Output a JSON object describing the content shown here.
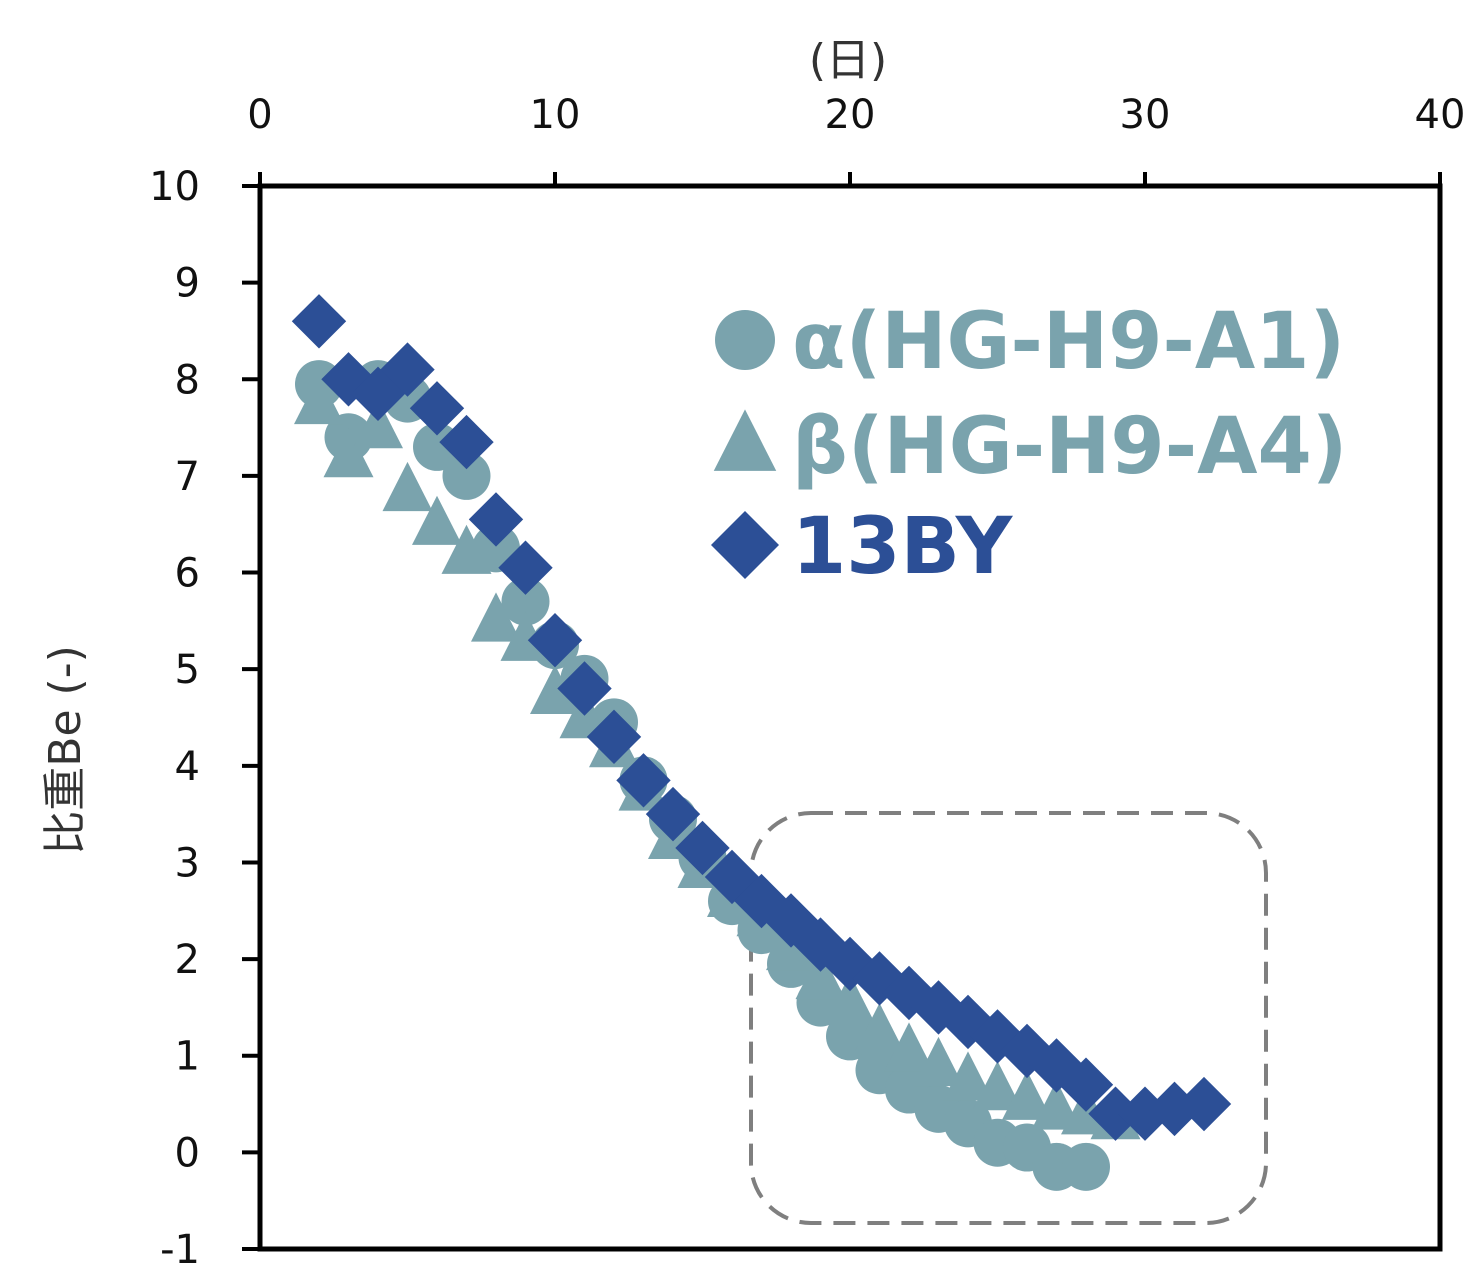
{
  "chart_data": {
    "type": "scatter",
    "xlabel": "(日)",
    "ylabel": "比重Be (-)",
    "xlim": [
      0,
      40
    ],
    "ylim": [
      -1,
      10
    ],
    "x_ticks": [
      "0",
      "10",
      "20",
      "30",
      "40"
    ],
    "y_ticks": [
      "10",
      "9",
      "8",
      "7",
      "6",
      "5",
      "4",
      "3",
      "2",
      "1",
      "0",
      "-1"
    ],
    "x_axis_position": "top",
    "grid": false,
    "legend_position": "top-right",
    "series": [
      {
        "name": "α(HG-H9-A1)",
        "marker": "circle",
        "color": "#7aa3ad",
        "points": [
          [
            2,
            7.95
          ],
          [
            3,
            7.4
          ],
          [
            4,
            7.95
          ],
          [
            5,
            7.8
          ],
          [
            6,
            7.3
          ],
          [
            7,
            7.0
          ],
          [
            8,
            6.25
          ],
          [
            9,
            5.7
          ],
          [
            10,
            5.25
          ],
          [
            11,
            4.9
          ],
          [
            12,
            4.45
          ],
          [
            13,
            3.85
          ],
          [
            14,
            3.45
          ],
          [
            15,
            3.05
          ],
          [
            16,
            2.6
          ],
          [
            17,
            2.3
          ],
          [
            18,
            1.95
          ],
          [
            19,
            1.55
          ],
          [
            20,
            1.2
          ],
          [
            21,
            0.85
          ],
          [
            22,
            0.65
          ],
          [
            23,
            0.45
          ],
          [
            24,
            0.3
          ],
          [
            25,
            0.1
          ],
          [
            26,
            0.05
          ],
          [
            27,
            -0.15
          ],
          [
            28,
            -0.15
          ]
        ]
      },
      {
        "name": "β(HG-H9-A4)",
        "marker": "triangle",
        "color": "#7aa3ad",
        "points": [
          [
            2,
            7.75
          ],
          [
            3,
            7.2
          ],
          [
            4,
            7.5
          ],
          [
            5,
            6.85
          ],
          [
            6,
            6.5
          ],
          [
            7,
            6.2
          ],
          [
            8,
            5.5
          ],
          [
            9,
            5.3
          ],
          [
            10,
            4.75
          ],
          [
            11,
            4.5
          ],
          [
            12,
            4.2
          ],
          [
            13,
            3.75
          ],
          [
            14,
            3.25
          ],
          [
            15,
            2.95
          ],
          [
            16,
            2.65
          ],
          [
            17,
            2.45
          ],
          [
            18,
            2.1
          ],
          [
            19,
            1.8
          ],
          [
            20,
            1.55
          ],
          [
            21,
            1.25
          ],
          [
            22,
            1.05
          ],
          [
            23,
            0.9
          ],
          [
            24,
            0.75
          ],
          [
            25,
            0.65
          ],
          [
            26,
            0.55
          ],
          [
            27,
            0.45
          ],
          [
            28,
            0.4
          ],
          [
            29,
            0.35
          ]
        ]
      },
      {
        "name": "13BY",
        "marker": "diamond",
        "color": "#2c4f96",
        "points": [
          [
            2,
            8.6
          ],
          [
            3,
            8.0
          ],
          [
            4,
            7.85
          ],
          [
            5,
            8.1
          ],
          [
            6,
            7.7
          ],
          [
            7,
            7.35
          ],
          [
            8,
            6.55
          ],
          [
            9,
            6.05
          ],
          [
            10,
            5.3
          ],
          [
            11,
            4.8
          ],
          [
            12,
            4.3
          ],
          [
            13,
            3.85
          ],
          [
            14,
            3.5
          ],
          [
            15,
            3.15
          ],
          [
            16,
            2.85
          ],
          [
            17,
            2.6
          ],
          [
            18,
            2.4
          ],
          [
            19,
            2.15
          ],
          [
            20,
            1.95
          ],
          [
            21,
            1.8
          ],
          [
            22,
            1.65
          ],
          [
            23,
            1.5
          ],
          [
            24,
            1.35
          ],
          [
            25,
            1.2
          ],
          [
            26,
            1.05
          ],
          [
            27,
            0.9
          ],
          [
            28,
            0.7
          ],
          [
            29,
            0.4
          ],
          [
            30,
            0.4
          ],
          [
            31,
            0.45
          ],
          [
            32,
            0.5
          ]
        ]
      }
    ]
  }
}
